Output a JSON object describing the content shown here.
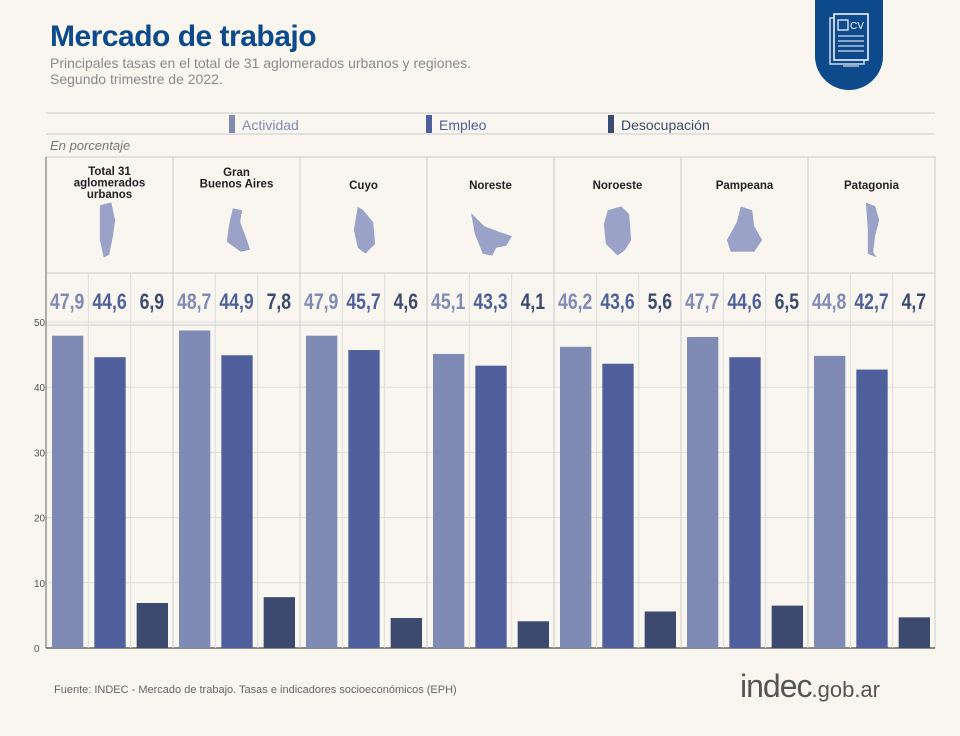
{
  "header": {
    "title": "Mercado de trabajo",
    "subtitle_line1": "Principales tasas en el total de 31 aglomerados urbanos y regiones.",
    "subtitle_line2": "Segundo trimestre de 2022.",
    "badge_icon": "cv-document-icon",
    "badge_text": "CV"
  },
  "footer": {
    "source": "Fuente: INDEC - Mercado de trabajo. Tasas e indicadores socioeconómicos (EPH)",
    "logo_main": "indec",
    "logo_domain": ".gob.ar"
  },
  "chart_data": {
    "type": "bar",
    "unit_label": "En porcentaje",
    "categories": [
      [
        "Total 31",
        "aglomerados",
        "urbanos"
      ],
      [
        "Gran",
        "Buenos Aires"
      ],
      [
        "Cuyo"
      ],
      [
        "Noreste"
      ],
      [
        "Noroeste"
      ],
      [
        "Pampeana"
      ],
      [
        "Patagonia"
      ]
    ],
    "series": [
      {
        "name": "Actividad",
        "color": "#7f8ab5",
        "values": [
          47.9,
          48.7,
          47.9,
          45.1,
          46.2,
          47.7,
          44.8
        ],
        "labels": [
          "47,9",
          "48,7",
          "47,9",
          "45,1",
          "46,2",
          "47,7",
          "44,8"
        ]
      },
      {
        "name": "Empleo",
        "color": "#4e5f9c",
        "values": [
          44.6,
          44.9,
          45.7,
          43.3,
          43.6,
          44.6,
          42.7
        ],
        "labels": [
          "44,6",
          "44,9",
          "45,7",
          "43,3",
          "43,6",
          "44,6",
          "42,7"
        ]
      },
      {
        "name": "Desocupación",
        "color": "#3b4a6e",
        "values": [
          6.9,
          7.8,
          4.6,
          4.1,
          5.6,
          6.5,
          4.7
        ],
        "labels": [
          "6,9",
          "7,8",
          "4,6",
          "4,1",
          "5,6",
          "6,5",
          "4,7"
        ]
      }
    ],
    "ylim": [
      0,
      50
    ],
    "yticks": [
      0,
      10,
      20,
      30,
      40,
      50
    ],
    "grid": true,
    "legend_placement": "top",
    "map_icons": [
      "argentina-map-icon",
      "gran-buenos-aires-map-icon",
      "cuyo-map-icon",
      "noreste-map-icon",
      "noroeste-map-icon",
      "pampeana-map-icon",
      "patagonia-map-icon"
    ]
  }
}
